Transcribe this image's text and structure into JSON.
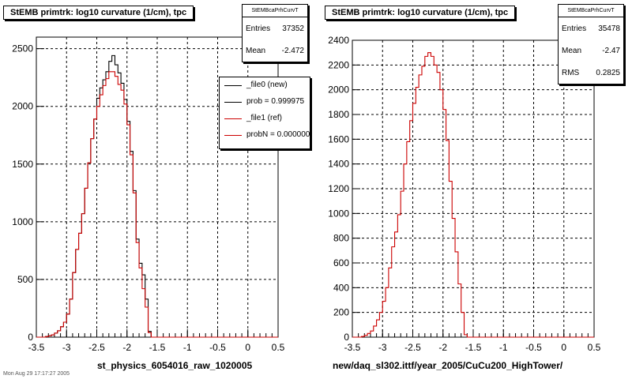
{
  "footer_text": "Mon Aug 29 17:17:27 2005",
  "legend": {
    "items": [
      {
        "label": "_file0 (new)",
        "color": "#000000"
      },
      {
        "label": "prob = 0.999975",
        "color": "#000000"
      },
      {
        "label": "_file1 (ref)",
        "color": "#cc0000"
      },
      {
        "label": "probN = 0.000000",
        "color": "#cc0000"
      }
    ]
  },
  "panels": [
    {
      "title": "StEMB primtrk: log10 curvature (1/cm), tpc",
      "stats": {
        "name": "StEMBcaPrhCurvT",
        "rows": [
          {
            "label": "Entries",
            "value": "37352"
          },
          {
            "label": "Mean",
            "value": "-2.472"
          }
        ]
      },
      "xcaption": "st_physics_6054016_raw_1020005"
    },
    {
      "title": "StEMB primtrk: log10 curvature (1/cm), tpc",
      "stats": {
        "name": "StEMBcaPrhCurvT",
        "rows": [
          {
            "label": "Entries",
            "value": "35478"
          },
          {
            "label": "Mean",
            "value": "-2.47"
          },
          {
            "label": "RMS",
            "value": "0.2825"
          }
        ]
      },
      "xcaption": "new/daq_sl302.ittf/year_2005/CuCu200_HighTower/"
    }
  ],
  "chart_data": [
    {
      "type": "histogram",
      "title": "StEMB primtrk: log10 curvature (1/cm), tpc",
      "xlabel": "st_physics_6054016_raw_1020005",
      "xlim": [
        -3.5,
        0.5
      ],
      "ylim": [
        0,
        2600
      ],
      "xticks": [
        "-3.5",
        "-3",
        "-2.5",
        "-2",
        "-1.5",
        "-1",
        "-0.5",
        "0",
        "0.5"
      ],
      "yticks": [
        "0",
        "500",
        "1000",
        "1500",
        "2000",
        "2500"
      ],
      "grid": true,
      "bin_start": -3.5,
      "bin_width": 0.05,
      "series": [
        {
          "name": "_file0 (new)",
          "color": "#000000",
          "values": [
            0,
            0,
            0,
            5,
            12,
            20,
            35,
            55,
            90,
            130,
            200,
            330,
            560,
            760,
            900,
            1070,
            1290,
            1510,
            1720,
            1890,
            2070,
            2160,
            2230,
            2300,
            2390,
            2440,
            2360,
            2290,
            2200,
            2060,
            1870,
            1610,
            1270,
            850,
            640,
            540,
            330,
            50,
            0,
            0,
            0,
            0,
            0,
            0,
            0,
            0,
            0,
            0,
            0,
            0,
            0,
            0,
            0,
            0,
            0,
            0,
            0,
            0,
            0,
            0,
            0,
            0,
            0,
            0,
            0,
            0,
            0,
            0,
            0,
            0,
            0,
            0,
            0,
            0,
            0,
            0,
            0,
            0,
            0,
            0
          ]
        },
        {
          "name": "_file1 (ref)",
          "color": "#cc0000",
          "values": [
            0,
            0,
            0,
            5,
            12,
            20,
            35,
            55,
            90,
            130,
            200,
            330,
            560,
            760,
            900,
            1070,
            1290,
            1510,
            1720,
            1890,
            2000,
            2100,
            2180,
            2240,
            2300,
            2300,
            2260,
            2190,
            2140,
            2020,
            1840,
            1580,
            1250,
            820,
            600,
            420,
            260,
            40,
            0,
            0,
            0,
            0,
            0,
            0,
            0,
            0,
            0,
            0,
            0,
            0,
            0,
            0,
            0,
            0,
            0,
            0,
            0,
            0,
            0,
            0,
            0,
            0,
            0,
            0,
            0,
            0,
            0,
            0,
            0,
            0,
            0,
            0,
            0,
            0,
            0,
            0,
            0,
            0,
            0,
            0
          ]
        }
      ]
    },
    {
      "type": "histogram",
      "title": "StEMB primtrk: log10 curvature (1/cm), tpc",
      "xlabel": "new/daq_sl302.ittf/year_2005/CuCu200_HighTower/",
      "xlim": [
        -3.5,
        0.5
      ],
      "ylim": [
        0,
        2400
      ],
      "xticks": [
        "-3.5",
        "-3",
        "-2.5",
        "-2",
        "-1.5",
        "-1",
        "-0.5",
        "0",
        "0.5"
      ],
      "yticks": [
        "0",
        "200",
        "400",
        "600",
        "800",
        "1000",
        "1200",
        "1400",
        "1600",
        "1800",
        "2000",
        "2200",
        "2400"
      ],
      "grid": true,
      "bin_start": -3.5,
      "bin_width": 0.05,
      "series": [
        {
          "name": "_file1 (ref)",
          "color": "#cc0000",
          "values": [
            0,
            0,
            0,
            5,
            15,
            30,
            50,
            90,
            140,
            200,
            290,
            400,
            560,
            730,
            850,
            990,
            1180,
            1400,
            1580,
            1750,
            1890,
            2020,
            2120,
            2190,
            2270,
            2300,
            2270,
            2200,
            2140,
            2000,
            1840,
            1590,
            1260,
            960,
            690,
            430,
            200,
            20,
            0,
            0,
            0,
            0,
            0,
            0,
            0,
            0,
            0,
            0,
            0,
            0,
            0,
            0,
            0,
            0,
            0,
            0,
            0,
            0,
            0,
            0,
            0,
            0,
            0,
            0,
            0,
            0,
            0,
            0,
            0,
            0,
            0,
            0,
            0,
            0,
            0,
            0,
            0,
            0,
            0,
            0
          ]
        }
      ]
    }
  ]
}
